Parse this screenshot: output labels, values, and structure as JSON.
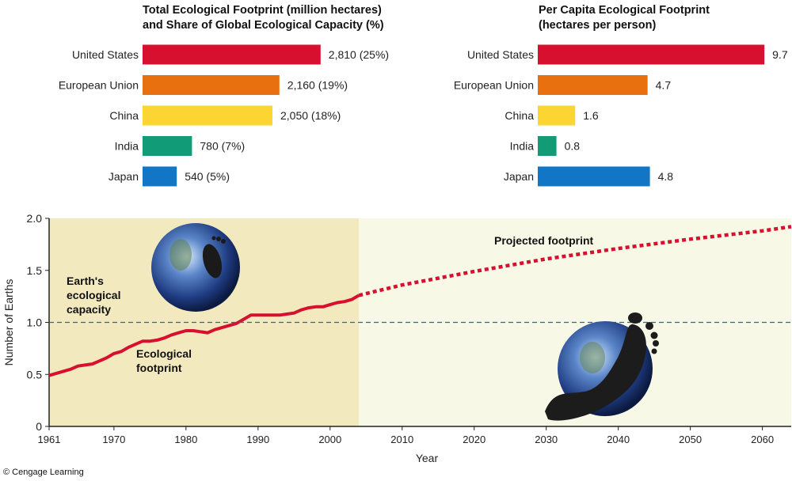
{
  "credit": "© Cengage Learning",
  "chart_data": [
    {
      "type": "bar",
      "orientation": "horizontal",
      "title": "Total Ecological Footprint (million hectares)\nand Share of Global Ecological Capacity (%)",
      "categories": [
        "United States",
        "European Union",
        "China",
        "India",
        "Japan"
      ],
      "values": [
        2810,
        2160,
        2050,
        780,
        540
      ],
      "data_labels": [
        "2,810 (25%)",
        "2,160 (19%)",
        "2,050 (18%)",
        "780 (7%)",
        "540 (5%)"
      ],
      "colors": [
        "#d7102f",
        "#e8700f",
        "#fbd531",
        "#119c77",
        "#1176c6"
      ]
    },
    {
      "type": "bar",
      "orientation": "horizontal",
      "title": "Per Capita Ecological Footprint\n(hectares per person)",
      "categories": [
        "United States",
        "European Union",
        "China",
        "India",
        "Japan"
      ],
      "values": [
        9.7,
        4.7,
        1.6,
        0.8,
        4.8
      ],
      "data_labels": [
        "9.7",
        "4.7",
        "1.6",
        "0.8",
        "4.8"
      ],
      "colors": [
        "#d7102f",
        "#e8700f",
        "#fbd531",
        "#119c77",
        "#1176c6"
      ]
    },
    {
      "type": "line",
      "xlabel": "Year",
      "ylabel": "Number of Earths",
      "xlim": [
        1961,
        2064
      ],
      "ylim": [
        0,
        2.0
      ],
      "xticks": [
        1961,
        1970,
        1980,
        1990,
        2000,
        2010,
        2020,
        2030,
        2040,
        2050,
        2060
      ],
      "yticks": [
        "0",
        "0.5",
        "1.0",
        "1.5",
        "2.0"
      ],
      "ytick_values": [
        0,
        0.5,
        1.0,
        1.5,
        2.0
      ],
      "region_split_year": 2004,
      "region_colors": {
        "historical": "#f3e9bf",
        "projected": "#f8f8e6"
      },
      "series": [
        {
          "name": "Ecological footprint",
          "color": "#d7102f",
          "style": "solid",
          "x": [
            1961,
            1962,
            1963,
            1964,
            1965,
            1966,
            1967,
            1968,
            1969,
            1970,
            1971,
            1972,
            1973,
            1974,
            1975,
            1976,
            1977,
            1978,
            1979,
            1980,
            1981,
            1982,
            1983,
            1984,
            1985,
            1986,
            1987,
            1988,
            1989,
            1990,
            1991,
            1992,
            1993,
            1994,
            1995,
            1996,
            1997,
            1998,
            1999,
            2000,
            2001,
            2002,
            2003,
            2004
          ],
          "y": [
            0.49,
            0.51,
            0.53,
            0.55,
            0.58,
            0.59,
            0.6,
            0.63,
            0.66,
            0.7,
            0.72,
            0.76,
            0.79,
            0.82,
            0.82,
            0.83,
            0.85,
            0.88,
            0.9,
            0.92,
            0.92,
            0.91,
            0.9,
            0.93,
            0.95,
            0.97,
            0.99,
            1.03,
            1.07,
            1.07,
            1.07,
            1.07,
            1.07,
            1.08,
            1.09,
            1.12,
            1.14,
            1.15,
            1.15,
            1.17,
            1.19,
            1.2,
            1.22,
            1.26
          ]
        },
        {
          "name": "Projected footprint",
          "color": "#d7102f",
          "style": "dotted",
          "x": [
            2004,
            2010,
            2020,
            2030,
            2040,
            2050,
            2060,
            2064
          ],
          "y": [
            1.26,
            1.36,
            1.49,
            1.61,
            1.71,
            1.8,
            1.88,
            1.92
          ]
        },
        {
          "name": "Earth's ecological capacity",
          "color": "#1a6bc0",
          "style": "dashed",
          "x": [
            1961,
            2064
          ],
          "y": [
            1.0,
            1.0
          ]
        }
      ],
      "annotations": [
        {
          "text": "Earth's\necological\ncapacity"
        },
        {
          "text": "Ecological\nfootprint"
        },
        {
          "text": "Projected footprint"
        }
      ]
    }
  ]
}
